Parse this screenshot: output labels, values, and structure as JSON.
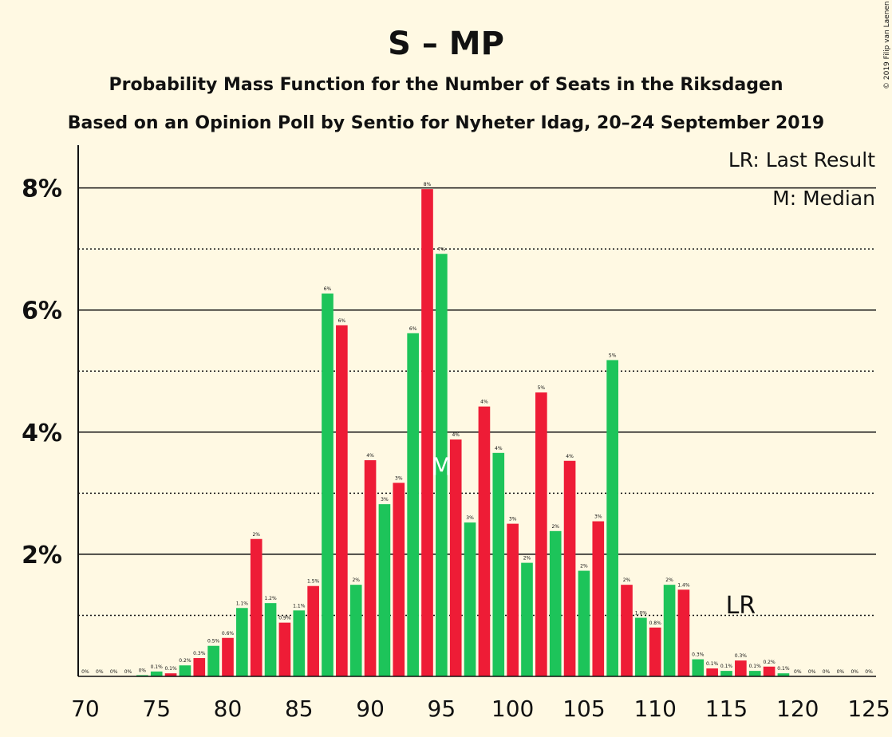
{
  "title": "S – MP",
  "subtitle1": "Probability Mass Function for the Number of Seats in the Riksdagen",
  "subtitle2": "Based on an Opinion Poll by Sentio for Nyheter Idag, 20–24 September 2019",
  "copyright": "© 2019 Filip van Laenen",
  "legend": {
    "lr": "LR: Last Result",
    "m": "M: Median"
  },
  "colors": {
    "green": "#1DC45A",
    "red": "#EE1C36",
    "background": "#FFF9E3"
  },
  "chart_data": {
    "type": "bar",
    "x": [
      70,
      71,
      72,
      73,
      74,
      75,
      76,
      77,
      78,
      79,
      80,
      81,
      82,
      83,
      84,
      85,
      86,
      87,
      88,
      89,
      90,
      91,
      92,
      93,
      94,
      95,
      96,
      97,
      98,
      99,
      100,
      101,
      102,
      103,
      104,
      105,
      106,
      107,
      108,
      109,
      110,
      111,
      112,
      113,
      114,
      115,
      116,
      117,
      118,
      119,
      120,
      121,
      122,
      123,
      124,
      125
    ],
    "values": [
      0,
      0,
      0,
      0,
      0.02,
      0.08,
      0.05,
      0.18,
      0.3,
      0.5,
      0.63,
      1.12,
      2.25,
      1.2,
      0.88,
      1.08,
      1.48,
      6.27,
      5.75,
      1.5,
      3.54,
      2.82,
      3.17,
      5.62,
      7.98,
      6.92,
      3.88,
      2.52,
      4.42,
      3.66,
      2.5,
      1.86,
      4.65,
      2.38,
      3.53,
      1.73,
      2.54,
      5.18,
      1.5,
      0.96,
      0.8,
      1.5,
      1.42,
      0.28,
      0.13,
      0.09,
      0.26,
      0.09,
      0.16,
      0.05,
      0,
      0,
      0,
      0,
      0,
      0
    ],
    "labels": [
      "0%",
      "0%",
      "0%",
      "0%",
      "0%",
      "0.1%",
      "0.1%",
      "0.2%",
      "0.3%",
      "0.5%",
      "0.6%",
      "1.1%",
      "2%",
      "1.2%",
      "0.9%",
      "1.1%",
      "1.5%",
      "6%",
      "6%",
      "2%",
      "4%",
      "3%",
      "3%",
      "6%",
      "8%",
      "7%",
      "4%",
      "3%",
      "4%",
      "4%",
      "3%",
      "2%",
      "5%",
      "2%",
      "4%",
      "2%",
      "3%",
      "5%",
      "2%",
      "1.0%",
      "0.8%",
      "2%",
      "1.4%",
      "0.3%",
      "0.1%",
      "0.1%",
      "0.3%",
      "0.1%",
      "0.2%",
      "0.1%",
      "0%",
      "0%",
      "0%",
      "0%",
      "0%",
      "0%"
    ],
    "colors": [
      "green",
      "green",
      "green",
      "green",
      "green",
      "green",
      "red",
      "green",
      "red",
      "green",
      "red",
      "green",
      "red",
      "green",
      "red",
      "green",
      "red",
      "green",
      "red",
      "green",
      "red",
      "green",
      "red",
      "green",
      "red",
      "green",
      "red",
      "green",
      "red",
      "green",
      "red",
      "green",
      "red",
      "green",
      "red",
      "green",
      "red",
      "green",
      "red",
      "green",
      "red",
      "green",
      "red",
      "green",
      "red",
      "green",
      "red",
      "green",
      "red",
      "green",
      "red",
      "green",
      "red",
      "green",
      "red",
      "green"
    ],
    "xticks": [
      70,
      75,
      80,
      85,
      90,
      95,
      100,
      105,
      110,
      115,
      120,
      125
    ],
    "xtick_labels": [
      "70",
      "75",
      "80",
      "85",
      "90",
      "95",
      "100",
      "105",
      "110",
      "115",
      "120",
      "125"
    ],
    "yticks": [
      2,
      4,
      6,
      8
    ],
    "ytick_labels": [
      "2%",
      "4%",
      "6%",
      "8%"
    ],
    "ylim": [
      0,
      8.7
    ],
    "xlim": [
      69.5,
      125.5
    ],
    "dotted_gridlines": [
      1,
      3,
      5,
      7
    ],
    "median": {
      "x": 95,
      "label": "M"
    },
    "last_result": {
      "x": 116,
      "label": "LR"
    }
  }
}
